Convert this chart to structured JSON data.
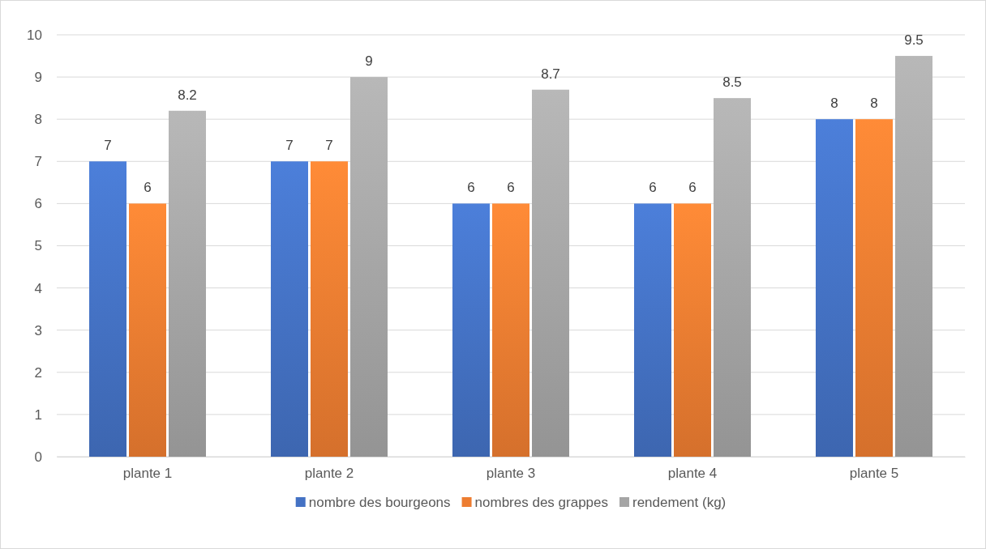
{
  "chart_data": {
    "type": "bar",
    "categories": [
      "plante 1",
      "plante 2",
      "plante 3",
      "plante 4",
      "plante 5"
    ],
    "series": [
      {
        "name": "nombre des bourgeons",
        "color": "#4472c4",
        "values": [
          7,
          7,
          6,
          6,
          8
        ]
      },
      {
        "name": "nombres des grappes",
        "color": "#ed7d31",
        "values": [
          6,
          7,
          6,
          6,
          8
        ]
      },
      {
        "name": "rendement (kg)",
        "color": "#a5a5a5",
        "values": [
          8.2,
          9,
          8.7,
          8.5,
          9.5
        ]
      }
    ],
    "ylim": [
      0,
      10
    ],
    "yticks": [
      0,
      1,
      2,
      3,
      4,
      5,
      6,
      7,
      8,
      9,
      10
    ],
    "grid": "y",
    "legend": "bottom",
    "data_labels": true
  }
}
